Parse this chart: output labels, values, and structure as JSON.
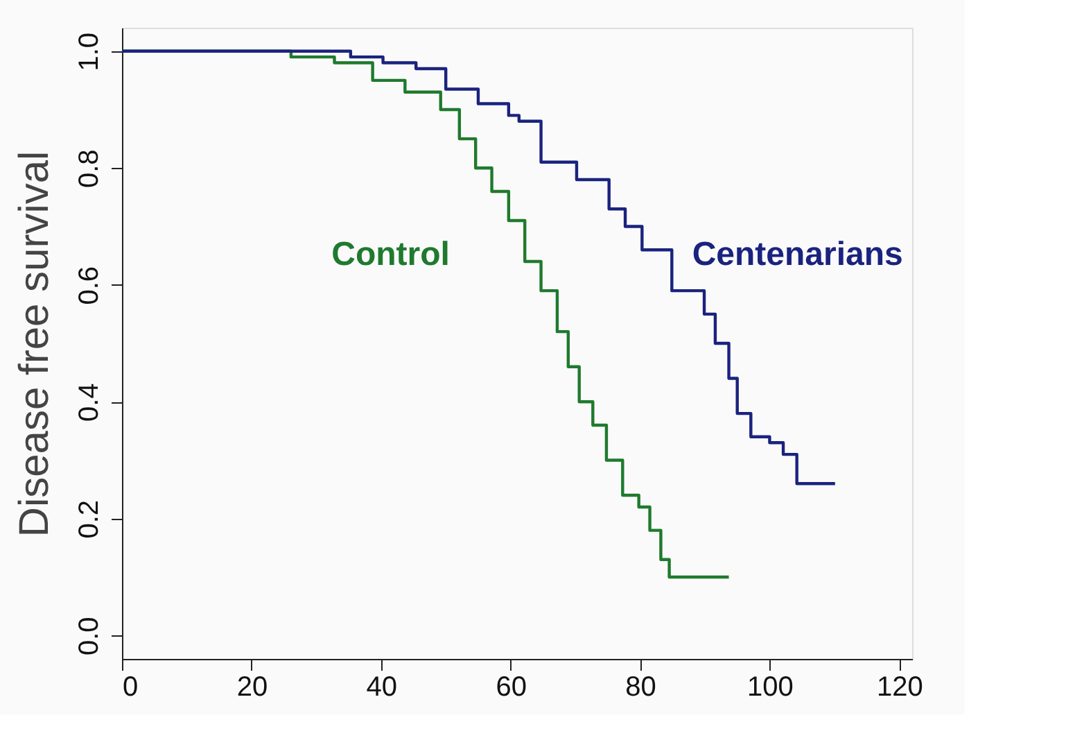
{
  "chart_data": {
    "type": "step",
    "ylabel": "Disease free survival",
    "xlim": [
      0,
      122
    ],
    "xticks": [
      0,
      20,
      40,
      60,
      80,
      100,
      120
    ],
    "ylim": [
      -0.04,
      1.04
    ],
    "yticks": [
      {
        "value": 0,
        "label": "0.0"
      },
      0.2,
      0.4,
      0.6,
      0.8,
      {
        "value": 1,
        "label": "1.0"
      }
    ],
    "grid": false,
    "line_style": "solid",
    "series": [
      {
        "name": "Control",
        "color": "#1f7a2e",
        "x": [
          0,
          26.1,
          32.8,
          38.7,
          43.7,
          49.2,
          52.1,
          54.6,
          57.1,
          59.7,
          62.2,
          64.7,
          67.2,
          68.9,
          70.6,
          72.7,
          74.8,
          77.3,
          79.8,
          81.5,
          83.2,
          84.5,
          93.7
        ],
        "values": [
          1.0,
          0.99,
          0.98,
          0.95,
          0.93,
          0.9,
          0.85,
          0.8,
          0.76,
          0.71,
          0.64,
          0.59,
          0.52,
          0.46,
          0.4,
          0.36,
          0.3,
          0.24,
          0.22,
          0.18,
          0.13,
          0.1,
          0.1
        ]
      },
      {
        "name": "Centenarians",
        "color": "#1a237e",
        "x": [
          0,
          35.3,
          40.3,
          45.4,
          50.0,
          55.0,
          59.7,
          61.3,
          64.7,
          70.2,
          75.2,
          77.7,
          80.3,
          84.9,
          89.9,
          91.6,
          93.7,
          95.0,
          97.1,
          100.0,
          102.1,
          104.2,
          110.1
        ],
        "values": [
          1.0,
          0.99,
          0.98,
          0.97,
          0.935,
          0.91,
          0.89,
          0.88,
          0.81,
          0.78,
          0.73,
          0.7,
          0.66,
          0.59,
          0.55,
          0.5,
          0.44,
          0.38,
          0.34,
          0.33,
          0.31,
          0.26,
          0.26
        ]
      }
    ]
  }
}
